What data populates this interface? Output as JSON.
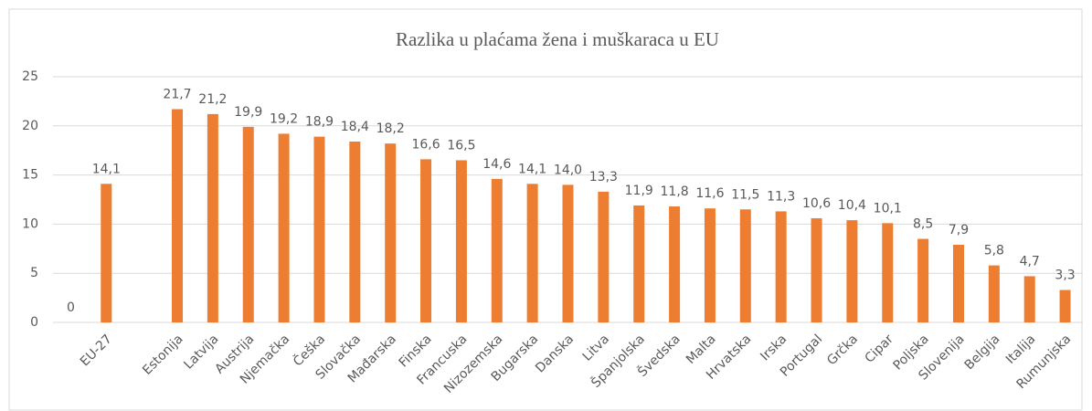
{
  "chart_data": {
    "type": "bar",
    "title": "Razlika  u plaćama žena i muškaraca u EU",
    "categories": [
      null,
      "EU-27",
      null,
      "Estonija",
      "Latvija",
      "Austrija",
      "Njemačka",
      "Češka",
      "Slovačka",
      "Mađarska",
      "Finska",
      "Francuska",
      "Nizozemska",
      "Bugarska",
      "Danska",
      "Litva",
      "Španjolska",
      "Švedska",
      "Malta",
      "Hrvatska",
      "Irska",
      "Portugal",
      "Grčka",
      "Cipar",
      "Poljska",
      "Slovenija",
      "Belgija",
      "Italija",
      "Rumunjska"
    ],
    "values": [
      0,
      14.1,
      null,
      21.7,
      21.2,
      19.9,
      19.2,
      18.9,
      18.4,
      18.2,
      16.6,
      16.5,
      14.6,
      14.1,
      14.0,
      13.3,
      11.9,
      11.8,
      11.6,
      11.5,
      11.3,
      10.6,
      10.4,
      10.1,
      8.5,
      7.9,
      5.8,
      4.7,
      3.3
    ],
    "value_labels": [
      "0",
      "14,1",
      null,
      "21,7",
      "21,2",
      "19,9",
      "19,2",
      "18,9",
      "18,4",
      "18,2",
      "16,6",
      "16,5",
      "14,6",
      "14,1",
      "14,0",
      "13,3",
      "11,9",
      "11,8",
      "11,6",
      "11,5",
      "11,3",
      "10,6",
      "10,4",
      "10,1",
      "8,5",
      "7,9",
      "5,8",
      "4,7",
      "3,3"
    ],
    "color": "#ed7d31",
    "ylim": [
      0,
      25
    ],
    "yticks": [
      0,
      5,
      10,
      15,
      20,
      25
    ],
    "grid": true
  }
}
